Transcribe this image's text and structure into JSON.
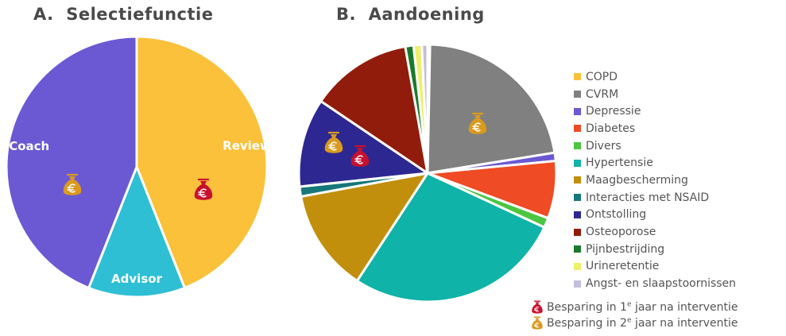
{
  "colors": {
    "coach": "#6b59d3",
    "review": "#fbc13a",
    "advisor": "#2ebfd4",
    "bag_year1": "#c8102e",
    "bag_year2": "#d99a1e"
  },
  "chart_data": [
    {
      "type": "pie",
      "title": "A.  Selectiefunctie",
      "slices": [
        {
          "label": "Review",
          "value": 44,
          "color": "#fbc13a",
          "savings_icon": "money-bag-year1-icon"
        },
        {
          "label": "Advisor",
          "value": 12,
          "color": "#2ebfd4",
          "savings_icon": ""
        },
        {
          "label": "Coach",
          "value": 44,
          "color": "#6b59d3",
          "savings_icon": "money-bag-year2-icon"
        }
      ]
    },
    {
      "type": "pie",
      "title": "B.  Aandoening",
      "legend_position": "right",
      "slices": [
        {
          "label": "COPD",
          "value": 0.3,
          "color": "#fbc13a"
        },
        {
          "label": "CVRM",
          "value": 21.5,
          "color": "#808080",
          "savings_icon": "money-bag-year2-icon"
        },
        {
          "label": "Depressie",
          "value": 1,
          "color": "#6b59d3"
        },
        {
          "label": "Diabetes",
          "value": 7,
          "color": "#ef4b24"
        },
        {
          "label": "Divers",
          "value": 1.2,
          "color": "#4cc642"
        },
        {
          "label": "Hypertensie",
          "value": 26.5,
          "color": "#0fb3a8"
        },
        {
          "label": "Maagbescherming",
          "value": 12.5,
          "color": "#c28f0c"
        },
        {
          "label": "Interacties met NSAID",
          "value": 1.2,
          "color": "#17787a"
        },
        {
          "label": "Ontstolling",
          "value": 10.8,
          "color": "#2d2891",
          "savings_icon": "both"
        },
        {
          "label": "Osteoporose",
          "value": 12.4,
          "color": "#921c0c"
        },
        {
          "label": "Pijnbestrijding",
          "value": 1,
          "color": "#1a7a2a"
        },
        {
          "label": "Urineretentie",
          "value": 1,
          "color": "#eef06a"
        },
        {
          "label": "Angst- en slaapstoornissen",
          "value": 0.7,
          "color": "#c2bfdc"
        }
      ]
    }
  ],
  "savings_legend": [
    {
      "icon": "money-bag-year1-icon",
      "prefix": "Besparing in 1",
      "sup": "e",
      "suffix": " jaar na interventie"
    },
    {
      "icon": "money-bag-year2-icon",
      "prefix": "Besparing in 2",
      "sup": "e",
      "suffix": " jaar na interventie"
    }
  ]
}
